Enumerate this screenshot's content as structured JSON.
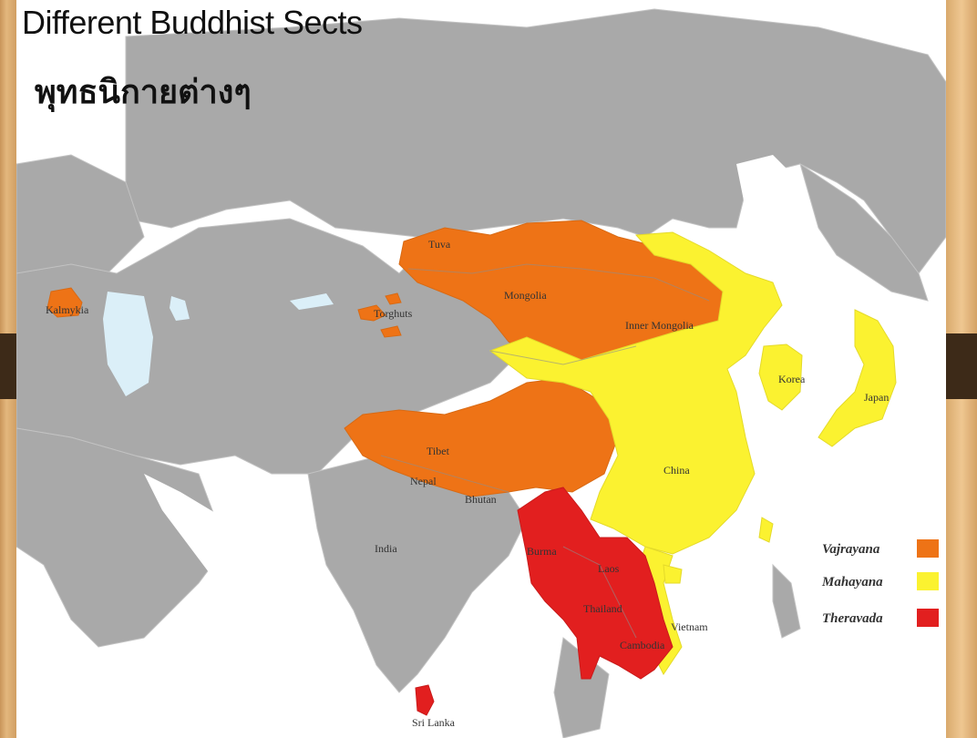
{
  "title": "Different Buddhist Sects",
  "subtitle_th": "พุทธนิกายต่างๆ",
  "colors": {
    "vajrayana": "#ee7316",
    "mahayana": "#fbf230",
    "theravada": "#e21f1f",
    "land": "#a9a9a9",
    "water": "#ffffff",
    "lake": "#dbeff8"
  },
  "legend": [
    {
      "label": "Vajrayana",
      "color": "#ee7316"
    },
    {
      "label": "Mahayana",
      "color": "#fbf230"
    },
    {
      "label": "Theravada",
      "color": "#e21f1f"
    }
  ],
  "labels": {
    "kalmykia": "Kalmykia",
    "tuva": "Tuva",
    "mongolia": "Mongolia",
    "torghuts": "Torghuts",
    "inner_mongolia": "Inner Mongolia",
    "korea": "Korea",
    "japan": "Japan",
    "tibet": "Tibet",
    "nepal": "Nepal",
    "bhutan": "Bhutan",
    "china": "China",
    "india": "India",
    "burma": "Burma",
    "laos": "Laos",
    "thailand": "Thailand",
    "vietnam": "Vietnam",
    "cambodia": "Cambodia",
    "sri_lanka": "Sri Lanka"
  }
}
